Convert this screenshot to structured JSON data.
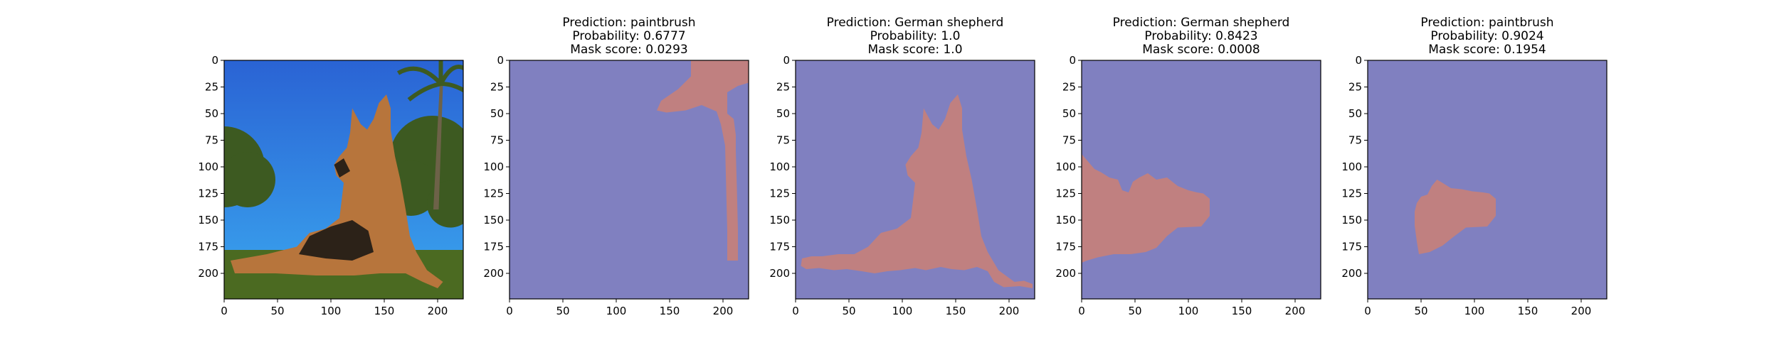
{
  "colors": {
    "background_mask": "#8080c0",
    "object_mask": "#c08080",
    "axis": "#000000",
    "sky_top": "#2a63d4",
    "sky_bottom": "#3aa6ef",
    "grass": "#4b6a21",
    "dog_tan": "#b7753c",
    "dog_dark": "#2c2218",
    "tree": "#3d5a21"
  },
  "chart_data": [
    {
      "type": "image",
      "title": "",
      "xlim": [
        0,
        224
      ],
      "ylim": [
        224,
        0
      ],
      "xticks": [
        0,
        50,
        100,
        150,
        200
      ],
      "yticks": [
        0,
        25,
        50,
        75,
        100,
        125,
        150,
        175,
        200
      ],
      "content": "photo of a German shepherd lying on grass under a blue sky with palm trees"
    },
    {
      "type": "mask",
      "title_lines": [
        "Prediction: paintbrush",
        "Probability: 0.6777",
        "Mask score: 0.0293"
      ],
      "xlim": [
        0,
        224
      ],
      "ylim": [
        224,
        0
      ],
      "xticks": [
        0,
        50,
        100,
        150,
        200
      ],
      "yticks": [
        0,
        25,
        50,
        75,
        100,
        125,
        150,
        175,
        200
      ],
      "polygon": [
        [
          170,
          0
        ],
        [
          224,
          0
        ],
        [
          224,
          21
        ],
        [
          214,
          24
        ],
        [
          204,
          30
        ],
        [
          204,
          50
        ],
        [
          210,
          55
        ],
        [
          212,
          70
        ],
        [
          212,
          85
        ],
        [
          213,
          120
        ],
        [
          214,
          160
        ],
        [
          214,
          188
        ],
        [
          204,
          188
        ],
        [
          204,
          160
        ],
        [
          203,
          120
        ],
        [
          202,
          80
        ],
        [
          198,
          60
        ],
        [
          194,
          48
        ],
        [
          180,
          42
        ],
        [
          165,
          47
        ],
        [
          147,
          49
        ],
        [
          138,
          47
        ],
        [
          142,
          38
        ],
        [
          158,
          27
        ],
        [
          170,
          15
        ]
      ]
    },
    {
      "type": "mask",
      "title_lines": [
        "Prediction: German shepherd",
        "Probability: 1.0",
        "Mask score: 1.0"
      ],
      "xlim": [
        0,
        224
      ],
      "ylim": [
        224,
        0
      ],
      "xticks": [
        0,
        50,
        100,
        150,
        200
      ],
      "yticks": [
        0,
        25,
        50,
        75,
        100,
        125,
        150,
        175,
        200
      ],
      "polygon": [
        [
          118,
          68
        ],
        [
          120,
          45
        ],
        [
          128,
          60
        ],
        [
          134,
          65
        ],
        [
          140,
          55
        ],
        [
          145,
          40
        ],
        [
          152,
          32
        ],
        [
          156,
          45
        ],
        [
          156,
          65
        ],
        [
          160,
          90
        ],
        [
          165,
          112
        ],
        [
          170,
          140
        ],
        [
          174,
          165
        ],
        [
          180,
          180
        ],
        [
          190,
          197
        ],
        [
          205,
          208
        ],
        [
          214,
          207
        ],
        [
          222,
          210
        ],
        [
          222,
          214
        ],
        [
          210,
          212
        ],
        [
          195,
          213
        ],
        [
          186,
          208
        ],
        [
          180,
          198
        ],
        [
          170,
          194
        ],
        [
          158,
          197
        ],
        [
          146,
          196
        ],
        [
          136,
          194
        ],
        [
          122,
          197
        ],
        [
          112,
          195
        ],
        [
          98,
          197
        ],
        [
          86,
          198
        ],
        [
          74,
          200
        ],
        [
          62,
          198
        ],
        [
          48,
          196
        ],
        [
          36,
          197
        ],
        [
          22,
          195
        ],
        [
          10,
          196
        ],
        [
          5,
          193
        ],
        [
          6,
          186
        ],
        [
          15,
          184
        ],
        [
          25,
          184
        ],
        [
          40,
          182
        ],
        [
          55,
          182
        ],
        [
          68,
          175
        ],
        [
          80,
          162
        ],
        [
          95,
          158
        ],
        [
          108,
          148
        ],
        [
          110,
          132
        ],
        [
          112,
          115
        ],
        [
          105,
          108
        ],
        [
          103,
          98
        ],
        [
          108,
          90
        ],
        [
          115,
          82
        ]
      ]
    },
    {
      "type": "mask",
      "title_lines": [
        "Prediction: German shepherd",
        "Probability: 0.8423",
        "Mask score: 0.0008"
      ],
      "xlim": [
        0,
        224
      ],
      "ylim": [
        224,
        0
      ],
      "xticks": [
        0,
        50,
        100,
        150,
        200
      ],
      "yticks": [
        0,
        25,
        50,
        75,
        100,
        125,
        150,
        175,
        200
      ],
      "polygon": [
        [
          0,
          88
        ],
        [
          6,
          95
        ],
        [
          12,
          102
        ],
        [
          18,
          105
        ],
        [
          26,
          110
        ],
        [
          34,
          112
        ],
        [
          38,
          122
        ],
        [
          44,
          124
        ],
        [
          48,
          114
        ],
        [
          54,
          110
        ],
        [
          62,
          106
        ],
        [
          70,
          112
        ],
        [
          80,
          110
        ],
        [
          90,
          118
        ],
        [
          100,
          122
        ],
        [
          108,
          124
        ],
        [
          114,
          125
        ],
        [
          120,
          130
        ],
        [
          120,
          146
        ],
        [
          112,
          156
        ],
        [
          90,
          157
        ],
        [
          80,
          165
        ],
        [
          70,
          176
        ],
        [
          60,
          180
        ],
        [
          46,
          182
        ],
        [
          30,
          182
        ],
        [
          15,
          185
        ],
        [
          5,
          188
        ],
        [
          0,
          190
        ]
      ]
    },
    {
      "type": "mask",
      "title_lines": [
        "Prediction: paintbrush",
        "Probability: 0.9024",
        "Mask score: 0.1954"
      ],
      "xlim": [
        0,
        224
      ],
      "ylim": [
        224,
        0
      ],
      "xticks": [
        0,
        50,
        100,
        150,
        200
      ],
      "yticks": [
        0,
        25,
        50,
        75,
        100,
        125,
        150,
        175,
        200
      ],
      "polygon": [
        [
          46,
          134
        ],
        [
          50,
          128
        ],
        [
          56,
          126
        ],
        [
          60,
          118
        ],
        [
          65,
          112
        ],
        [
          70,
          115
        ],
        [
          78,
          120
        ],
        [
          88,
          121
        ],
        [
          98,
          123
        ],
        [
          108,
          124
        ],
        [
          114,
          125
        ],
        [
          120,
          130
        ],
        [
          120,
          146
        ],
        [
          112,
          156
        ],
        [
          92,
          157
        ],
        [
          80,
          166
        ],
        [
          70,
          174
        ],
        [
          58,
          180
        ],
        [
          48,
          182
        ],
        [
          46,
          170
        ],
        [
          44,
          155
        ],
        [
          44,
          142
        ]
      ]
    }
  ]
}
